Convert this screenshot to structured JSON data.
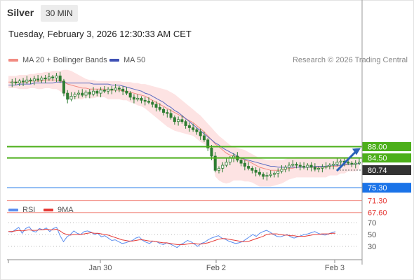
{
  "header": {
    "instrument": "Silver",
    "timeframe": "30 MIN",
    "timestamp": "Tuesday, February 3, 2026 12:30:33 AM CET"
  },
  "legend": {
    "ma20_label": "MA 20 + Bollinger Bands",
    "ma50_label": "MA 50",
    "credit": "Research © 2026 Trading Central",
    "rsi_label": "RSI",
    "ma9_label": "9MA"
  },
  "colors": {
    "candle": "#2e7d32",
    "ma20": "#f28b82",
    "band_fill": "#fde0e0",
    "ma50": "#5c6bc0",
    "resistance": "#4caf1a",
    "support": "#f28b82",
    "pivot": "#1a73e8",
    "current": "#333333",
    "rsi": "#5b8def",
    "rsi_ma": "#e53935"
  },
  "chart_data": [
    {
      "type": "candlestick",
      "title": "",
      "x_ticks": [
        "Jan 30",
        "Feb 2",
        "Feb 3"
      ],
      "ylim": [
        64,
        100
      ],
      "levels": [
        {
          "name": "resistance-1",
          "value": 88.0,
          "label": "88.00",
          "kind": "resistance"
        },
        {
          "name": "resistance-2",
          "value": 84.5,
          "label": "84.50",
          "kind": "resistance"
        },
        {
          "name": "current-price",
          "value": 80.74,
          "label": "80.74",
          "kind": "current"
        },
        {
          "name": "pivot",
          "value": 75.3,
          "label": "75.30",
          "kind": "pivot"
        },
        {
          "name": "support-1",
          "value": 71.3,
          "label": "71.30",
          "kind": "support"
        },
        {
          "name": "support-2",
          "value": 67.6,
          "label": "67.60",
          "kind": "support"
        }
      ],
      "close": [
        114,
        115,
        114,
        116,
        115,
        117,
        116,
        118,
        117,
        119,
        118,
        120,
        119,
        121,
        116,
        104,
        98,
        101,
        103,
        104,
        102,
        105,
        103,
        106,
        104,
        107,
        106,
        108,
        107,
        109,
        108,
        106,
        104,
        100,
        98,
        99,
        97,
        96,
        95,
        93,
        90,
        88,
        85,
        84,
        80,
        76,
        78,
        76,
        72,
        70,
        68,
        66,
        62,
        58,
        50,
        42,
        28,
        30,
        33,
        36,
        40,
        42,
        38,
        35,
        32,
        30,
        28,
        26,
        24,
        22,
        23,
        24,
        25,
        27,
        29,
        31,
        33,
        34,
        33,
        32,
        31,
        33,
        31,
        29,
        30,
        31,
        32,
        33,
        34,
        36,
        37,
        36,
        35,
        34,
        35,
        36
      ],
      "ma20": [
        115,
        115,
        115,
        115,
        115,
        115,
        116,
        116,
        116,
        116,
        117,
        117,
        117,
        117,
        116,
        115,
        113,
        112,
        111,
        110,
        109,
        109,
        108,
        108,
        108,
        108,
        108,
        107,
        107,
        107,
        107,
        106,
        106,
        105,
        104,
        103,
        102,
        101,
        99,
        97,
        95,
        93,
        91,
        89,
        87,
        85,
        83,
        81,
        79,
        77,
        75,
        72,
        69,
        66,
        62,
        58,
        54,
        51,
        48,
        45,
        43,
        42,
        41,
        40,
        38,
        37,
        35,
        33,
        31,
        30,
        29,
        28,
        28,
        28,
        28,
        29,
        30,
        30,
        31,
        31,
        31,
        31,
        31,
        31,
        31,
        31,
        31,
        32,
        32,
        32,
        33,
        33,
        34,
        34,
        34,
        35
      ],
      "band_upper": [
        121,
        121,
        121,
        122,
        122,
        122,
        123,
        123,
        124,
        124,
        125,
        125,
        126,
        126,
        126,
        127,
        127,
        126,
        124,
        122,
        120,
        118,
        117,
        117,
        116,
        116,
        116,
        116,
        116,
        116,
        116,
        115,
        115,
        115,
        114,
        114,
        113,
        113,
        112,
        111,
        110,
        109,
        108,
        107,
        105,
        103,
        100,
        97,
        94,
        91,
        88,
        85,
        82,
        78,
        74,
        70,
        66,
        62,
        59,
        56,
        53,
        51,
        50,
        49,
        48,
        46,
        44,
        42,
        40,
        39,
        38,
        38,
        38,
        38,
        38,
        39,
        40,
        40,
        41,
        41,
        41,
        41,
        41,
        41,
        41,
        41,
        41,
        41,
        41,
        41,
        41,
        41,
        41,
        41,
        41,
        41
      ],
      "band_lower": [
        109,
        109,
        109,
        108,
        108,
        108,
        109,
        109,
        108,
        108,
        109,
        109,
        108,
        108,
        106,
        103,
        99,
        98,
        98,
        98,
        98,
        100,
        99,
        99,
        100,
        100,
        100,
        98,
        98,
        98,
        98,
        97,
        97,
        95,
        94,
        92,
        91,
        89,
        86,
        83,
        80,
        77,
        74,
        71,
        69,
        67,
        66,
        65,
        64,
        63,
        62,
        59,
        56,
        54,
        50,
        46,
        22,
        18,
        16,
        15,
        16,
        18,
        18,
        18,
        17,
        17,
        16,
        14,
        12,
        12,
        12,
        12,
        13,
        14,
        15,
        17,
        19,
        20,
        21,
        21,
        21,
        21,
        21,
        21,
        21,
        21,
        21,
        23,
        23,
        23,
        25,
        25,
        27,
        27,
        27,
        29
      ],
      "ma50": [
        112,
        112,
        112,
        113,
        113,
        113,
        113,
        114,
        114,
        114,
        114,
        114,
        114,
        115,
        115,
        115,
        114,
        114,
        114,
        114,
        114,
        114,
        114,
        113,
        113,
        113,
        113,
        113,
        112,
        112,
        112,
        111,
        110,
        109,
        108,
        107,
        106,
        104,
        103,
        101,
        99,
        97,
        95,
        92,
        90,
        87,
        85,
        82,
        79,
        76,
        73,
        70,
        67,
        64,
        61,
        58,
        55,
        53,
        50,
        48,
        46,
        44,
        42,
        40,
        39,
        38,
        37,
        36,
        35,
        34,
        33,
        32,
        32,
        31,
        31,
        31,
        31,
        31,
        31,
        31,
        31,
        31,
        31,
        32,
        32,
        32,
        32,
        33,
        33,
        33,
        33,
        34,
        34,
        34,
        34,
        35
      ],
      "forecast_arrow": {
        "from": 80.74,
        "to": 88.0
      }
    },
    {
      "type": "line",
      "title": "",
      "series": [
        {
          "name": "RSI",
          "values": [
            55,
            54,
            58,
            62,
            52,
            60,
            63,
            56,
            54,
            60,
            58,
            61,
            55,
            60,
            62,
            48,
            38,
            46,
            50,
            56,
            52,
            50,
            55,
            56,
            54,
            50,
            52,
            46,
            48,
            44,
            40,
            41,
            38,
            35,
            36,
            38,
            40,
            44,
            46,
            40,
            37,
            35,
            39,
            38,
            35,
            33,
            36,
            34,
            31,
            28,
            33,
            36,
            40,
            38,
            34,
            30,
            35,
            37,
            41,
            44,
            46,
            48,
            44,
            42,
            39,
            37,
            35,
            36,
            38,
            42,
            46,
            50,
            47,
            52,
            55,
            57,
            54,
            50,
            47,
            46,
            48,
            50,
            46,
            44,
            46,
            48,
            50,
            51,
            53,
            55,
            52,
            50,
            49,
            51,
            53,
            55
          ]
        },
        {
          "name": "9MA",
          "values": [
            55,
            55,
            56,
            57,
            56,
            57,
            58,
            57,
            57,
            58,
            58,
            59,
            58,
            58,
            59,
            56,
            52,
            50,
            49,
            50,
            50,
            50,
            51,
            52,
            53,
            52,
            52,
            51,
            50,
            49,
            47,
            45,
            43,
            41,
            40,
            39,
            39,
            40,
            41,
            41,
            40,
            39,
            39,
            38,
            37,
            36,
            36,
            35,
            34,
            33,
            33,
            33,
            34,
            35,
            35,
            34,
            34,
            35,
            36,
            38,
            40,
            42,
            43,
            43,
            42,
            41,
            40,
            39,
            38,
            38,
            39,
            41,
            43,
            45,
            47,
            50,
            51,
            51,
            51,
            50,
            49,
            49,
            48,
            48,
            47,
            47,
            47,
            48,
            49,
            50,
            50,
            51,
            51,
            51,
            52,
            52
          ]
        }
      ],
      "levels": [
        70,
        50,
        30
      ],
      "ylim": [
        10,
        85
      ]
    }
  ]
}
